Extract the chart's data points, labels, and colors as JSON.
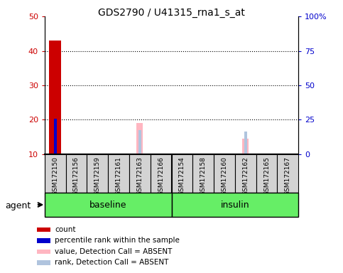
{
  "title": "GDS2790 / U41315_rna1_s_at",
  "samples": [
    "GSM172150",
    "GSM172156",
    "GSM172159",
    "GSM172161",
    "GSM172163",
    "GSM172166",
    "GSM172154",
    "GSM172158",
    "GSM172160",
    "GSM172162",
    "GSM172165",
    "GSM172167"
  ],
  "count_values": [
    43,
    0,
    0,
    0,
    0,
    0,
    0,
    0,
    0,
    0,
    0,
    0
  ],
  "rank_values": [
    26,
    0,
    0,
    0,
    0,
    0,
    0,
    0,
    0,
    0,
    0,
    0
  ],
  "absent_value_values": [
    0,
    0,
    0,
    0,
    19,
    0,
    0,
    0,
    0,
    14.5,
    0,
    0
  ],
  "absent_rank_values": [
    0,
    0,
    0,
    0,
    17.5,
    0,
    0,
    0,
    0,
    16.5,
    0,
    0
  ],
  "ylim_left": [
    10,
    50
  ],
  "ylim_right": [
    0,
    100
  ],
  "yticks_left": [
    10,
    20,
    30,
    40,
    50
  ],
  "yticks_right": [
    0,
    25,
    50,
    75,
    100
  ],
  "ytick_labels_right": [
    "0",
    "25",
    "50",
    "75",
    "100%"
  ],
  "count_color": "#CC0000",
  "rank_color": "#0000CC",
  "absent_value_color": "#FFB6C1",
  "absent_rank_color": "#B0C4DE",
  "group_box_color": "#D3D3D3",
  "green_color": "#66EE66",
  "left_tick_color": "#CC0000",
  "right_tick_color": "#0000CC",
  "baseline_label": "baseline",
  "insulin_label": "insulin",
  "agent_label": "agent",
  "legend_items": [
    {
      "color": "#CC0000",
      "label": "count"
    },
    {
      "color": "#0000CC",
      "label": "percentile rank within the sample"
    },
    {
      "color": "#FFB6C1",
      "label": "value, Detection Call = ABSENT"
    },
    {
      "color": "#B0C4DE",
      "label": "rank, Detection Call = ABSENT"
    }
  ]
}
